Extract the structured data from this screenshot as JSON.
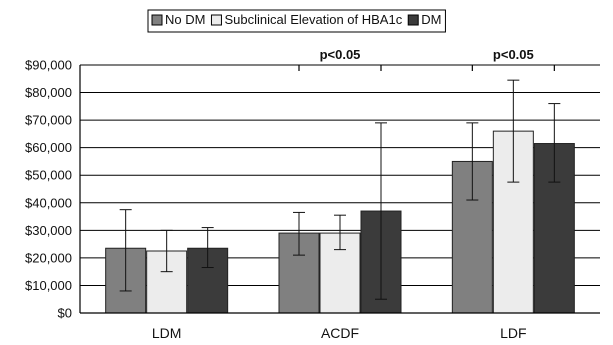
{
  "chart_data": {
    "type": "bar",
    "categories": [
      "LDM",
      "ACDF",
      "LDF"
    ],
    "series": [
      {
        "name": "No DM",
        "color": "#808080",
        "values": [
          23500,
          29000,
          55000
        ],
        "error_low": [
          8000,
          21000,
          41000
        ],
        "error_high": [
          37500,
          36500,
          69000
        ]
      },
      {
        "name": "Subclinical Elevation of HBA1c",
        "color": "#ececec",
        "values": [
          22500,
          29000,
          66000
        ],
        "error_low": [
          15000,
          23000,
          47500
        ],
        "error_high": [
          30000,
          35500,
          84500
        ]
      },
      {
        "name": "DM",
        "color": "#3b3b3b",
        "values": [
          23500,
          37000,
          61500
        ],
        "error_low": [
          16500,
          5000,
          47500
        ],
        "error_high": [
          31000,
          69000,
          76000
        ]
      }
    ],
    "y_ticks": [
      "$0",
      "$10,000",
      "$20,000",
      "$30,000",
      "$40,000",
      "$50,000",
      "$60,000",
      "$70,000",
      "$80,000",
      "$90,000"
    ],
    "ylim": [
      0,
      90000
    ],
    "grid": true,
    "legend_position": "top",
    "annotations": [
      {
        "text": "p<0.05",
        "category": "ACDF",
        "at_value": 90000
      },
      {
        "text": "p<0.05",
        "category": "LDF",
        "at_value": 90000
      }
    ]
  }
}
